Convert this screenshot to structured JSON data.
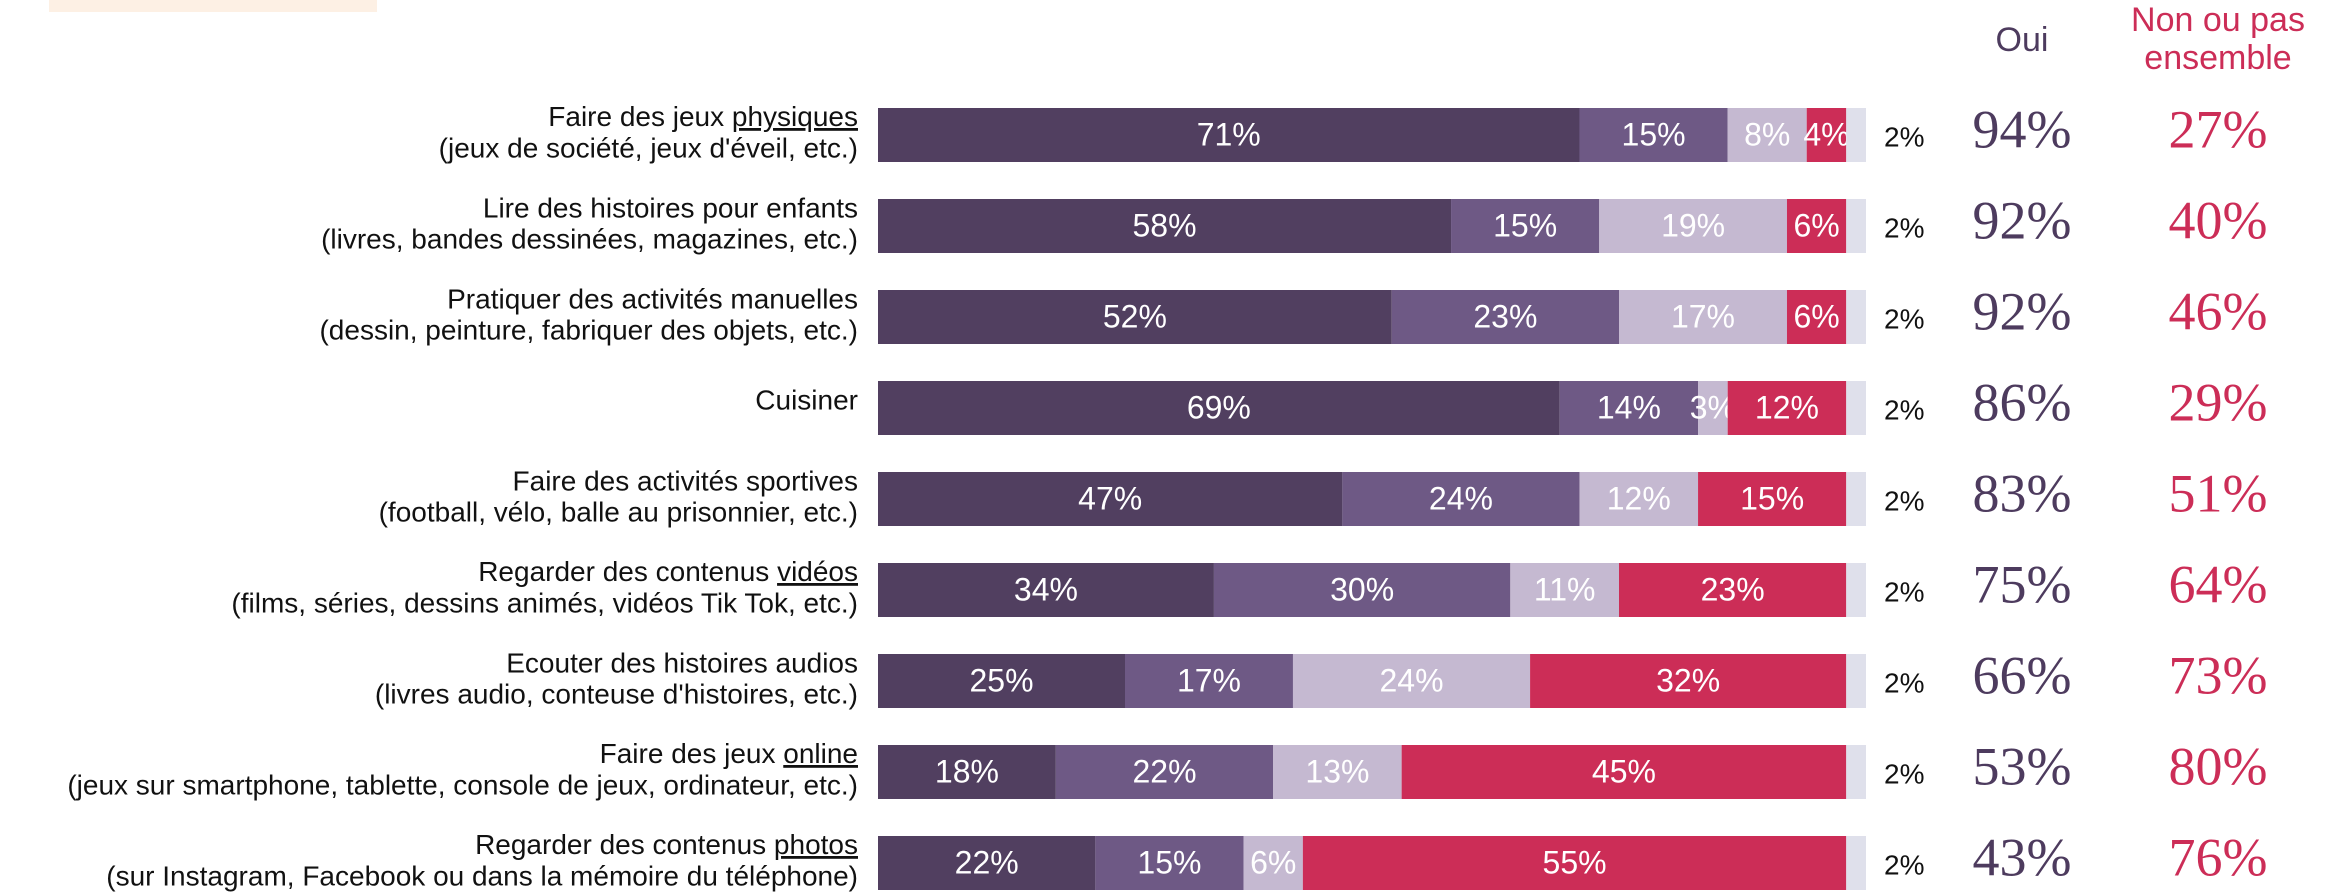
{
  "chart_data": {
    "type": "bar",
    "orientation": "horizontal",
    "stacked": true,
    "categories": [
      "Faire des jeux physiques",
      "Lire des histoires pour enfants",
      "Pratiquer des activités manuelles",
      "Cuisiner",
      "Faire des activités sportives",
      "Regarder des contenus vidéos",
      "Ecouter des histoires audios",
      "Faire des jeux online",
      "Regarder des contenus photos"
    ],
    "underline": [
      "physiques",
      null,
      null,
      null,
      null,
      "vidéos",
      null,
      "online",
      "photos"
    ],
    "subtitles": [
      "(jeux de société, jeux d'éveil, etc.)",
      "(livres, bandes dessinées, magazines, etc.)",
      "(dessin, peinture, fabriquer des objets, etc.)",
      null,
      "(football, vélo, balle au prisonnier, etc.)",
      "(films, séries, dessins animés, vidéos Tik Tok, etc.)",
      "(livres audio, conteuse d'histoires, etc.)",
      "(jeux sur smartphone, tablette, console de jeux, ordinateur, etc.)",
      "(sur Instagram, Facebook ou dans la mémoire du téléphone)"
    ],
    "xlim": [
      0,
      100
    ],
    "series": [
      {
        "color": "#513f60",
        "values": [
          71,
          58,
          52,
          69,
          47,
          34,
          25,
          18,
          22
        ],
        "value_labels": [
          "71%",
          "58%",
          "52%",
          "69%",
          "47%",
          "34%",
          "25%",
          "18%",
          "22%"
        ]
      },
      {
        "color": "#6e5985",
        "values": [
          15,
          15,
          23,
          14,
          24,
          30,
          17,
          22,
          15
        ],
        "value_labels": [
          "15%",
          "15%",
          "23%",
          "14%",
          "24%",
          "30%",
          "17%",
          "22%",
          "15%"
        ]
      },
      {
        "color": "#c5b9d1",
        "values": [
          8,
          19,
          17,
          3,
          12,
          11,
          24,
          13,
          6
        ],
        "value_labels": [
          "8%",
          "19%",
          "17%",
          "3%",
          "12%",
          "11%",
          "24%",
          "13%",
          "6%"
        ]
      },
      {
        "color": "#cc2d57",
        "values": [
          4,
          6,
          6,
          12,
          15,
          23,
          32,
          45,
          55
        ],
        "value_labels": [
          "4%",
          "6%",
          "6%",
          "12%",
          "15%",
          "23%",
          "32%",
          "45%",
          "55%"
        ]
      },
      {
        "color": "#dfe0eb",
        "values": [
          2,
          2,
          2,
          2,
          2,
          2,
          2,
          2,
          2
        ],
        "value_labels": [
          "2%",
          "2%",
          "2%",
          "2%",
          "2%",
          "2%",
          "2%",
          "2%",
          "2%"
        ]
      }
    ],
    "columns": [
      {
        "title": [
          "Oui"
        ],
        "color": "#4d3b5e",
        "values": [
          94,
          92,
          92,
          86,
          83,
          75,
          66,
          53,
          43
        ],
        "value_labels": [
          "94%",
          "92%",
          "92%",
          "86%",
          "83%",
          "75%",
          "66%",
          "53%",
          "43%"
        ]
      },
      {
        "title": [
          "Non ou pas",
          "ensemble"
        ],
        "color": "#cc2d57",
        "values": [
          27,
          40,
          46,
          29,
          51,
          64,
          73,
          80,
          76
        ],
        "value_labels": [
          "27%",
          "40%",
          "46%",
          "29%",
          "51%",
          "64%",
          "73%",
          "80%",
          "76%"
        ]
      }
    ]
  }
}
